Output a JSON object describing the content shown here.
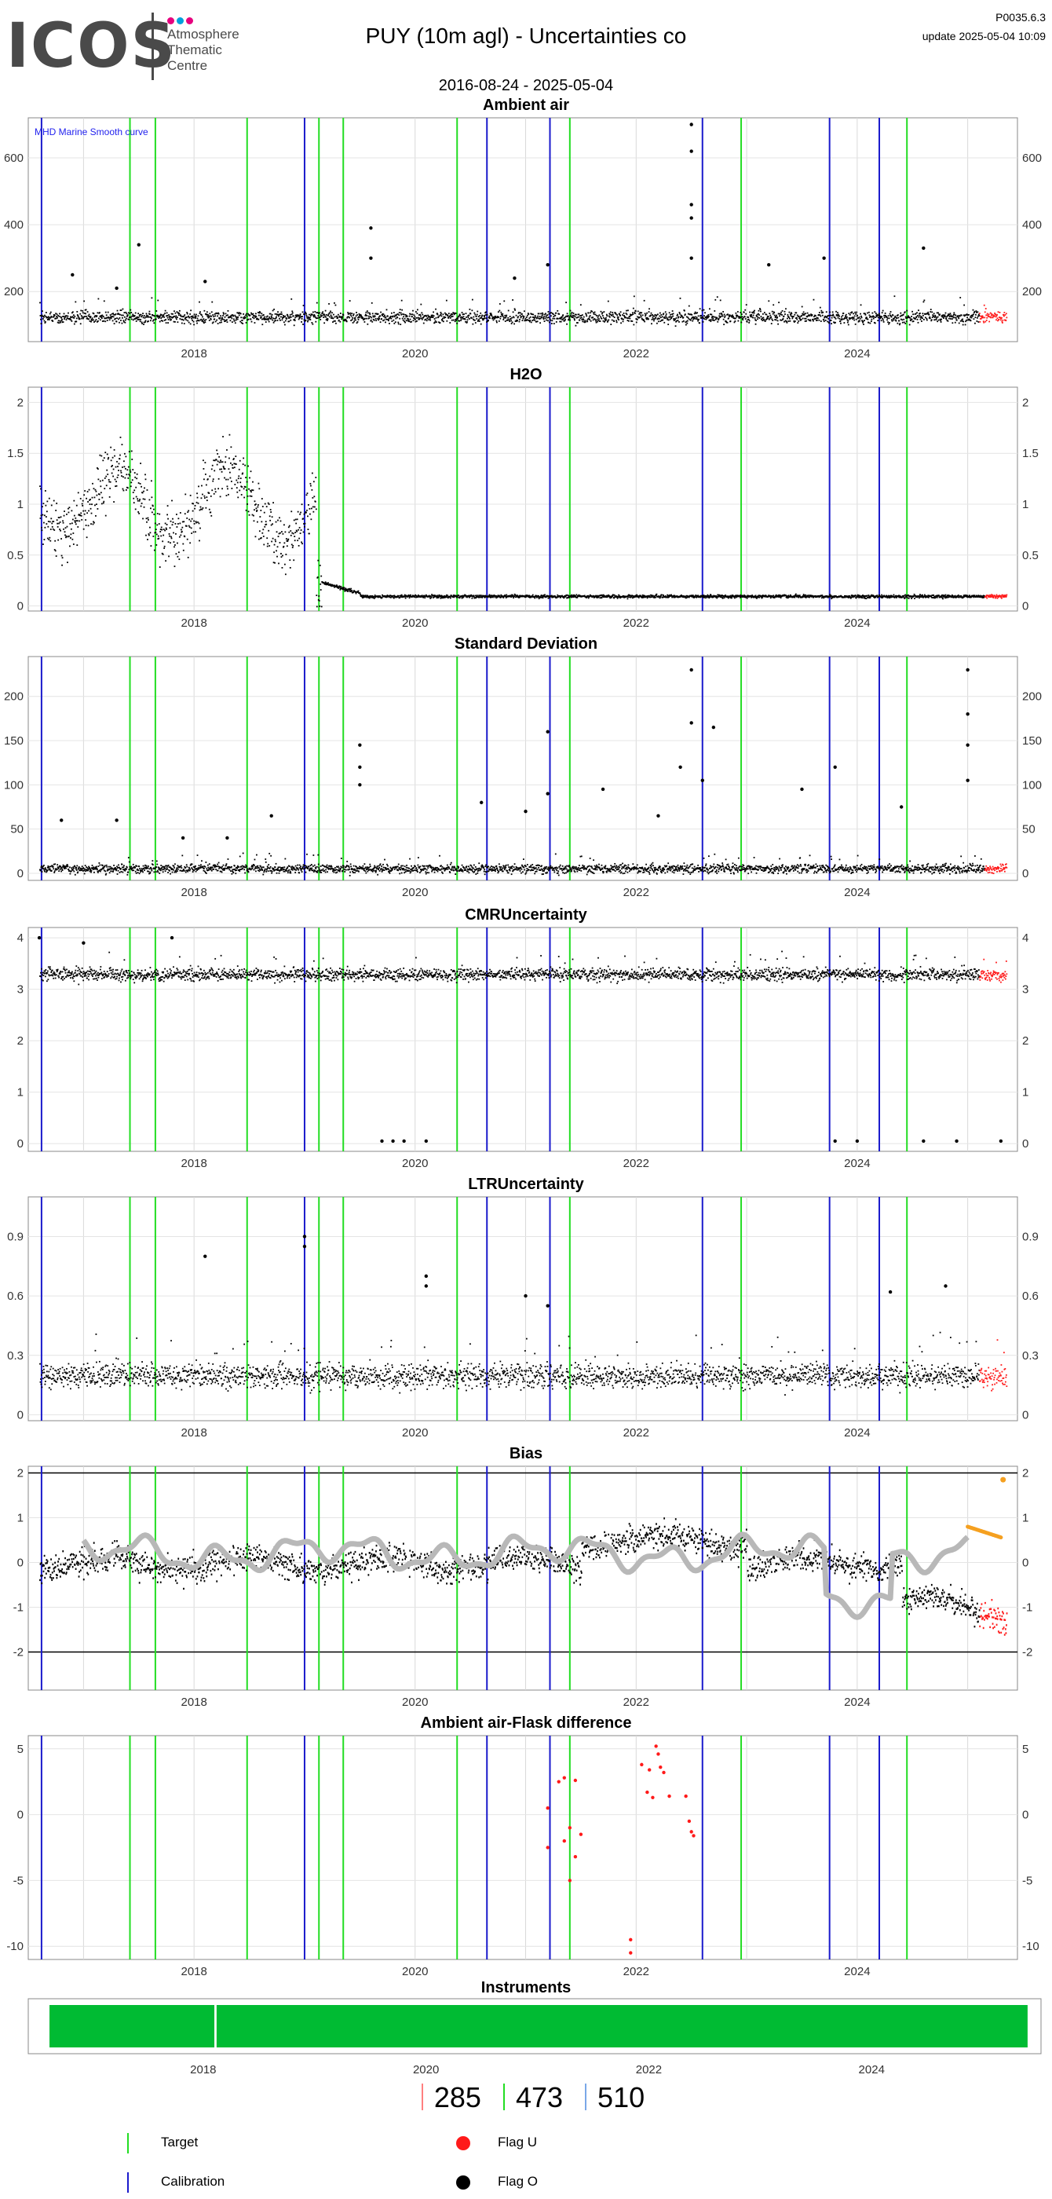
{
  "header": {
    "logo_text": "ICOS",
    "logo_sub": [
      "Atmosphere",
      "Thematic",
      "Centre"
    ],
    "title": "PUY  (10m agl) - Uncertainties co",
    "version": "P0035.6.3",
    "update": "update  2025-05-04 10:09",
    "date_range": "2016-08-24 - 2025-05-04"
  },
  "colors": {
    "data": "#000000",
    "flag_u": "#ff1a1a",
    "target": "#22dd22",
    "calibration": "#1a1acc",
    "smooth": "#b8b8b8",
    "orange": "#f5a020",
    "instrument": "#00bb33",
    "logo_dots": [
      "#e6007e",
      "#00a0dc",
      "#e6007e"
    ]
  },
  "chart_data": [
    {
      "type": "scatter",
      "title": "Ambient air",
      "annotation": "MHD Marine Smooth curve",
      "x_ticks": [
        "2018",
        "2020",
        "2022",
        "2024"
      ],
      "y_ticks": [
        200,
        400,
        600
      ],
      "ylim": [
        50,
        720
      ],
      "baseline": 125,
      "noise": 18,
      "spikes": [
        [
          2016.9,
          250
        ],
        [
          2017.3,
          210
        ],
        [
          2017.5,
          340
        ],
        [
          2018.1,
          230
        ],
        [
          2019.6,
          390
        ],
        [
          2019.6,
          300
        ],
        [
          2020.9,
          240
        ],
        [
          2021.2,
          280
        ],
        [
          2022.5,
          700
        ],
        [
          2022.5,
          620
        ],
        [
          2022.5,
          460
        ],
        [
          2022.5,
          420
        ],
        [
          2022.5,
          300
        ],
        [
          2023.2,
          280
        ],
        [
          2023.7,
          300
        ],
        [
          2024.6,
          330
        ]
      ],
      "flag_from": 2025.1
    },
    {
      "type": "scatter",
      "title": "H2O",
      "x_ticks": [
        "2018",
        "2020",
        "2022",
        "2024"
      ],
      "y_ticks": [
        0.0,
        0.5,
        1.0,
        1.5,
        2.0
      ],
      "ylim": [
        -0.05,
        2.15
      ],
      "flag_from": 2025.15
    },
    {
      "type": "scatter",
      "title": "Standard Deviation",
      "x_ticks": [
        "2018",
        "2020",
        "2022",
        "2024"
      ],
      "y_ticks": [
        0,
        50,
        100,
        150,
        200
      ],
      "ylim": [
        -8,
        245
      ],
      "baseline": 6,
      "noise": 5,
      "spikes": [
        [
          2016.8,
          60
        ],
        [
          2017.3,
          60
        ],
        [
          2017.9,
          40
        ],
        [
          2018.3,
          40
        ],
        [
          2018.7,
          65
        ],
        [
          2019.5,
          145
        ],
        [
          2019.5,
          120
        ],
        [
          2019.5,
          100
        ],
        [
          2020.6,
          80
        ],
        [
          2021.0,
          70
        ],
        [
          2021.2,
          160
        ],
        [
          2021.2,
          90
        ],
        [
          2021.7,
          95
        ],
        [
          2022.2,
          65
        ],
        [
          2022.5,
          230
        ],
        [
          2022.5,
          170
        ],
        [
          2022.4,
          120
        ],
        [
          2022.7,
          165
        ],
        [
          2022.6,
          105
        ],
        [
          2023.5,
          95
        ],
        [
          2023.8,
          120
        ],
        [
          2024.4,
          75
        ],
        [
          2025.0,
          230
        ],
        [
          2025.0,
          180
        ],
        [
          2025.0,
          145
        ],
        [
          2025.0,
          105
        ]
      ],
      "flag_from": 2025.15
    },
    {
      "type": "scatter",
      "title": "CMRUncertainty",
      "x_ticks": [
        "2018",
        "2020",
        "2022",
        "2024"
      ],
      "y_ticks": [
        0,
        1,
        2,
        3,
        4
      ],
      "ylim": [
        -0.15,
        4.2
      ],
      "baseline": 3.3,
      "noise": 0.12,
      "spikes": [
        [
          2016.6,
          4.0
        ],
        [
          2017.0,
          3.9
        ],
        [
          2017.8,
          4.0
        ],
        [
          2019.7,
          0.05
        ],
        [
          2019.8,
          0.05
        ],
        [
          2019.9,
          0.05
        ],
        [
          2020.1,
          0.05
        ],
        [
          2023.8,
          0.05
        ],
        [
          2024.0,
          0.05
        ],
        [
          2024.6,
          0.05
        ],
        [
          2024.9,
          0.05
        ],
        [
          2025.3,
          0.05
        ]
      ],
      "flag_from": 2025.1
    },
    {
      "type": "scatter",
      "title": "LTRUncertainty",
      "x_ticks": [
        "2018",
        "2020",
        "2022",
        "2024"
      ],
      "y_ticks": [
        0.0,
        0.3,
        0.6,
        0.9
      ],
      "ylim": [
        -0.03,
        1.1
      ],
      "baseline": 0.2,
      "noise": 0.06,
      "spikes": [
        [
          2018.1,
          0.8
        ],
        [
          2019.0,
          0.9
        ],
        [
          2019.0,
          0.85
        ],
        [
          2020.1,
          0.7
        ],
        [
          2020.1,
          0.65
        ],
        [
          2021.0,
          0.6
        ],
        [
          2021.2,
          0.55
        ],
        [
          2024.3,
          0.62
        ],
        [
          2024.8,
          0.65
        ]
      ],
      "flag_from": 2025.1
    },
    {
      "type": "line",
      "title": "Bias",
      "x_ticks": [
        "2018",
        "2020",
        "2022",
        "2024"
      ],
      "y_ticks": [
        -2,
        -1,
        0,
        1,
        2
      ],
      "ylim": [
        -2.85,
        2.15
      ],
      "hlines": [
        2,
        -2
      ],
      "flag_from": 2025.1
    },
    {
      "type": "scatter",
      "title": "Ambient air-Flask difference",
      "x_ticks": [
        "2018",
        "2020",
        "2022",
        "2024"
      ],
      "y_ticks": [
        -10,
        -5,
        0,
        5
      ],
      "ylim": [
        -11,
        6
      ],
      "points": [
        [
          2021.2,
          0.5
        ],
        [
          2021.2,
          -2.5
        ],
        [
          2021.3,
          2.5
        ],
        [
          2021.35,
          2.8
        ],
        [
          2021.35,
          -2.0
        ],
        [
          2021.4,
          -1.0
        ],
        [
          2021.4,
          -5.0
        ],
        [
          2021.45,
          -3.2
        ],
        [
          2021.45,
          2.6
        ],
        [
          2021.5,
          -1.5
        ],
        [
          2021.95,
          -9.5
        ],
        [
          2021.95,
          -10.5
        ],
        [
          2022.05,
          3.8
        ],
        [
          2022.1,
          1.7
        ],
        [
          2022.12,
          3.4
        ],
        [
          2022.15,
          1.3
        ],
        [
          2022.18,
          5.2
        ],
        [
          2022.2,
          4.6
        ],
        [
          2022.22,
          3.6
        ],
        [
          2022.25,
          3.2
        ],
        [
          2022.3,
          1.4
        ],
        [
          2022.45,
          1.4
        ],
        [
          2022.48,
          -0.5
        ],
        [
          2022.5,
          -1.3
        ],
        [
          2022.52,
          -1.6
        ]
      ]
    }
  ],
  "calibration_dates": [
    2016.62,
    2019.0,
    2020.65,
    2021.22,
    2022.6,
    2023.75,
    2024.2
  ],
  "target_dates": [
    2017.42,
    2017.65,
    2018.48,
    2019.13,
    2019.35,
    2020.38,
    2021.4,
    2022.95,
    2024.45
  ],
  "instruments": {
    "title": "Instruments",
    "x_ticks": [
      "2018",
      "2020",
      "2022",
      "2024"
    ]
  },
  "counts": {
    "red": "285",
    "green": "473",
    "blue": "510"
  },
  "legend": {
    "target": "Target",
    "calibration": "Calibration",
    "flag_u": "Flag U",
    "flag_o": "Flag O"
  }
}
